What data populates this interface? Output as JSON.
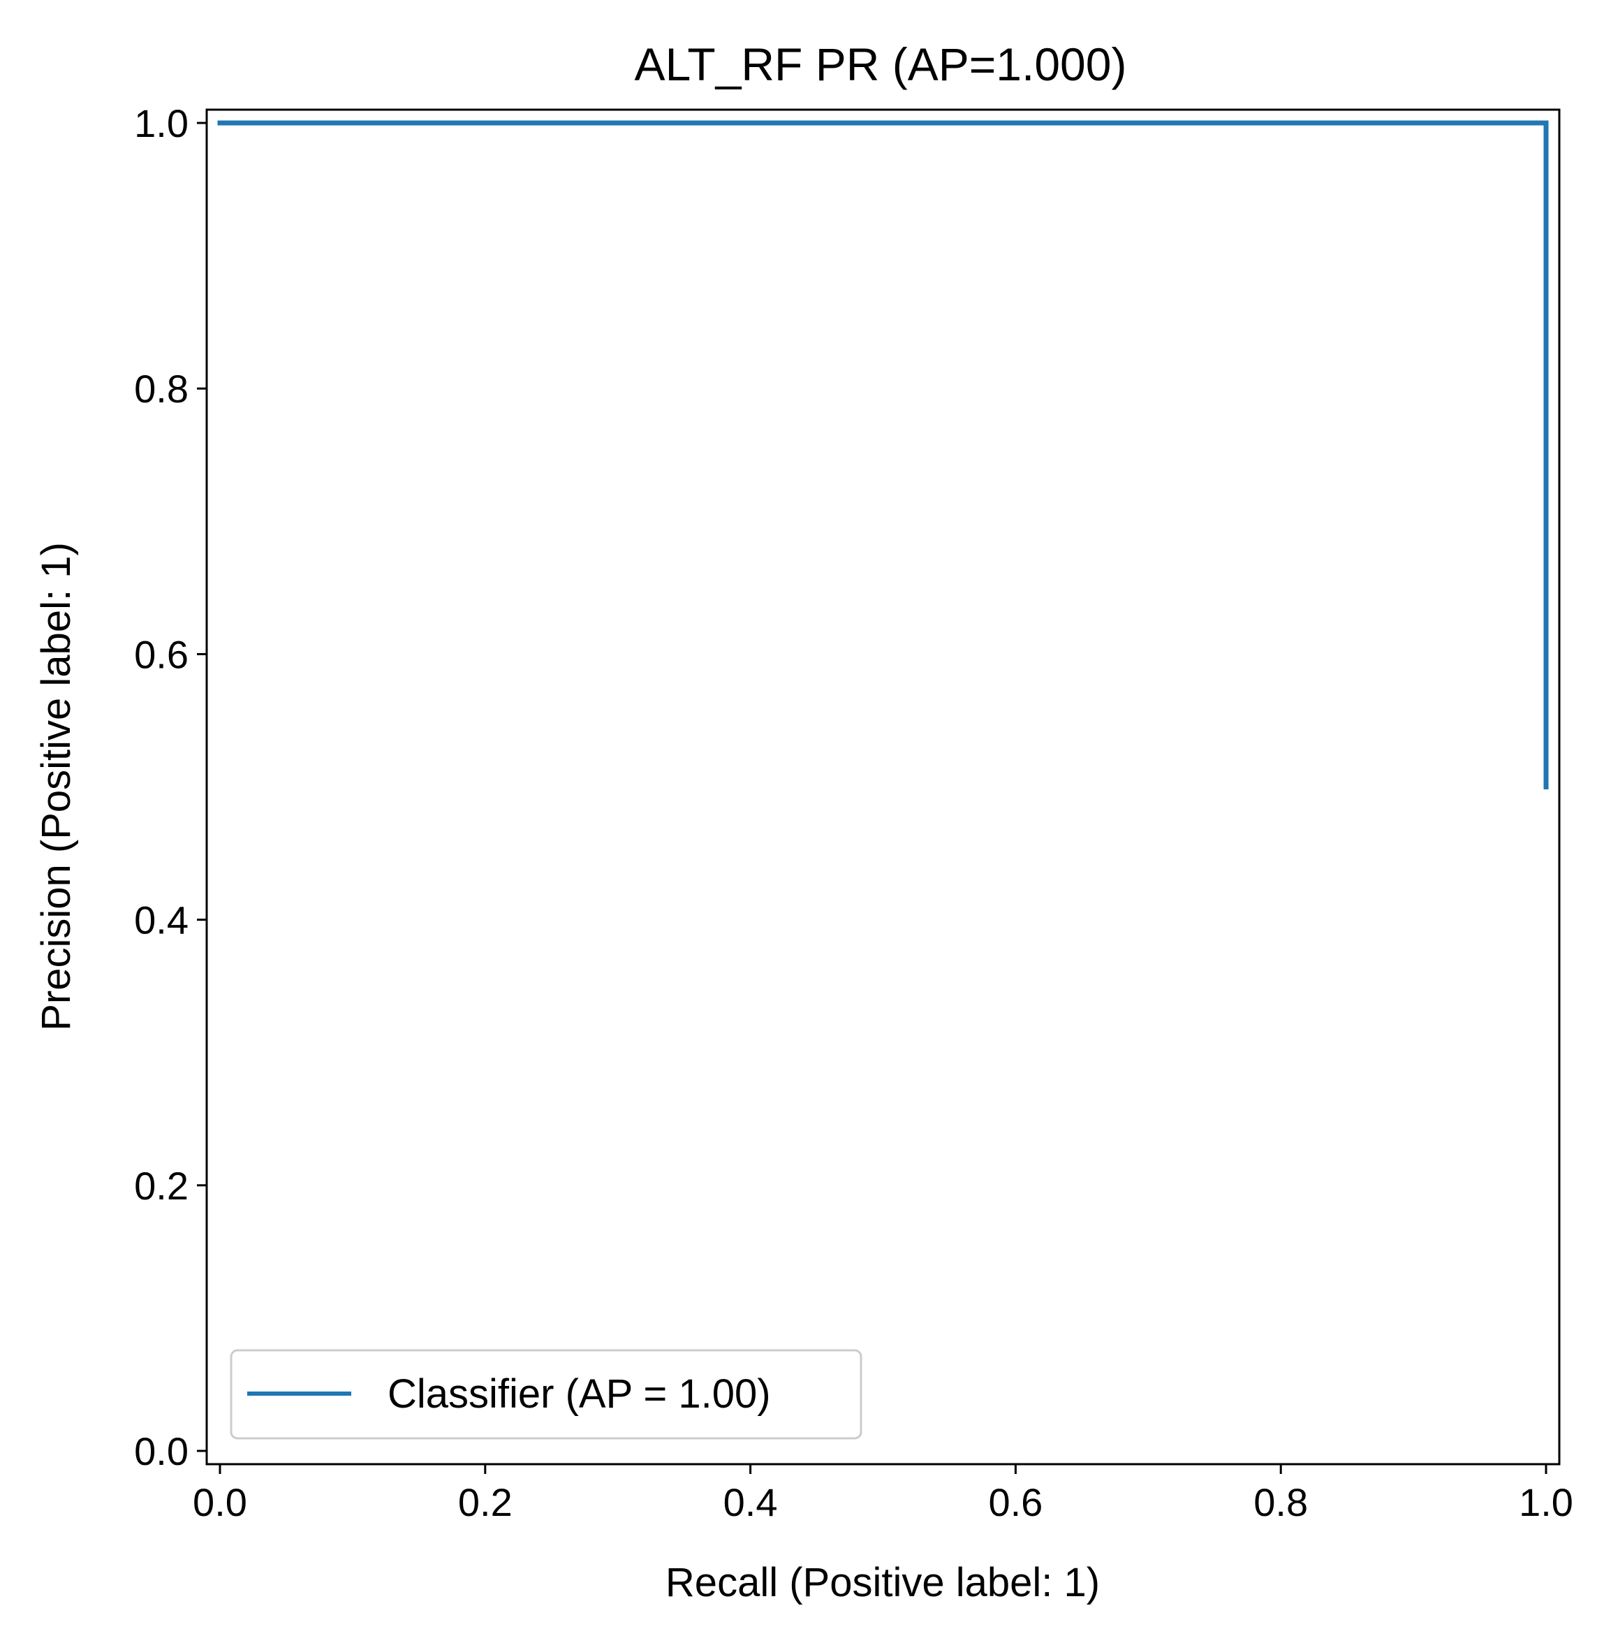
{
  "chart_data": {
    "type": "line",
    "title": "ALT_RF PR (AP=1.000)",
    "xlabel": "Recall (Positive label: 1)",
    "ylabel": "Precision (Positive label: 1)",
    "xlim": [
      -0.01,
      1.01
    ],
    "ylim": [
      -0.01,
      1.01
    ],
    "xticks": [
      "0.0",
      "0.2",
      "0.4",
      "0.6",
      "0.8",
      "1.0"
    ],
    "yticks": [
      "0.0",
      "0.2",
      "0.4",
      "0.6",
      "0.8",
      "1.0"
    ],
    "grid": false,
    "legend_position": "lower-left",
    "series": [
      {
        "name": "Classifier (AP = 1.00)",
        "color": "#1f77b4",
        "drawstyle": "steps-post",
        "x": [
          0.0,
          1.0,
          1.0
        ],
        "y": [
          1.0,
          1.0,
          0.5
        ]
      }
    ]
  }
}
